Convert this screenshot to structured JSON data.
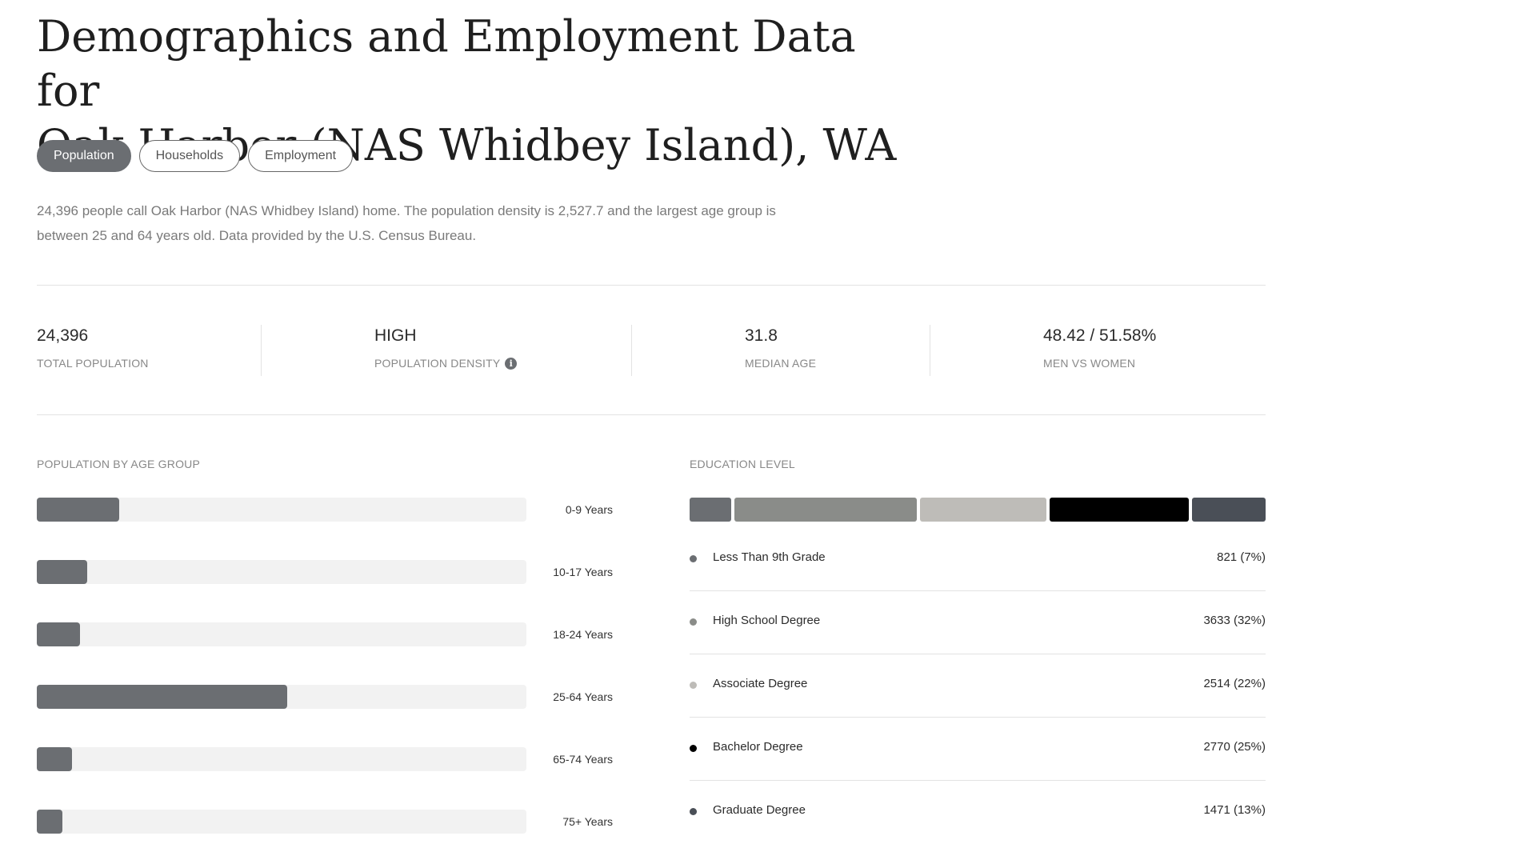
{
  "page": {
    "title_line1": "Demographics and Employment Data for",
    "title_line2": "Oak Harbor (NAS Whidbey Island), WA",
    "tabs": [
      "Population",
      "Households",
      "Employment"
    ],
    "active_tab": "Population",
    "description_line1": "24,396 people call Oak Harbor (NAS Whidbey Island) home. The population density is 2,527.7 and the largest age group is",
    "description_line2": "between 25 and 64 years old. Data provided by the U.S. Census Bureau."
  },
  "stats": [
    {
      "value": "24,396",
      "label": "TOTAL POPULATION"
    },
    {
      "value": "HIGH",
      "label": "POPULATION DENSITY",
      "icon": "info-icon"
    },
    {
      "value": "31.8",
      "label": "MEDIAN AGE"
    },
    {
      "value": "48.42 / 51.58%",
      "label": "MEN VS WOMEN"
    }
  ],
  "age_section": {
    "title": "POPULATION BY AGE GROUP",
    "groups": [
      {
        "label": "0-9 Years",
        "share": 0.168
      },
      {
        "label": "10-17 Years",
        "share": 0.103
      },
      {
        "label": "18-24 Years",
        "share": 0.089
      },
      {
        "label": "25-64 Years",
        "share": 0.512
      },
      {
        "label": "65-74 Years",
        "share": 0.072
      },
      {
        "label": "75+ Years",
        "share": 0.053
      }
    ]
  },
  "education_section": {
    "title": "EDUCATION LEVEL",
    "levels": [
      {
        "name": "Less Than 9th Grade",
        "value": "821 (7%)",
        "count": 821,
        "color": "#6b6e72"
      },
      {
        "name": "High School Degree",
        "value": "3633 (32%)",
        "count": 3633,
        "color": "#8a8c89"
      },
      {
        "name": "Associate Degree",
        "value": "2514 (22%)",
        "count": 2514,
        "color": "#bebcb8"
      },
      {
        "name": "Bachelor Degree",
        "value": "2770 (25%)",
        "count": 2770,
        "color": "#000000"
      },
      {
        "name": "Graduate Degree",
        "value": "1471 (13%)",
        "count": 1471,
        "color": "#4a4f57"
      }
    ]
  }
}
